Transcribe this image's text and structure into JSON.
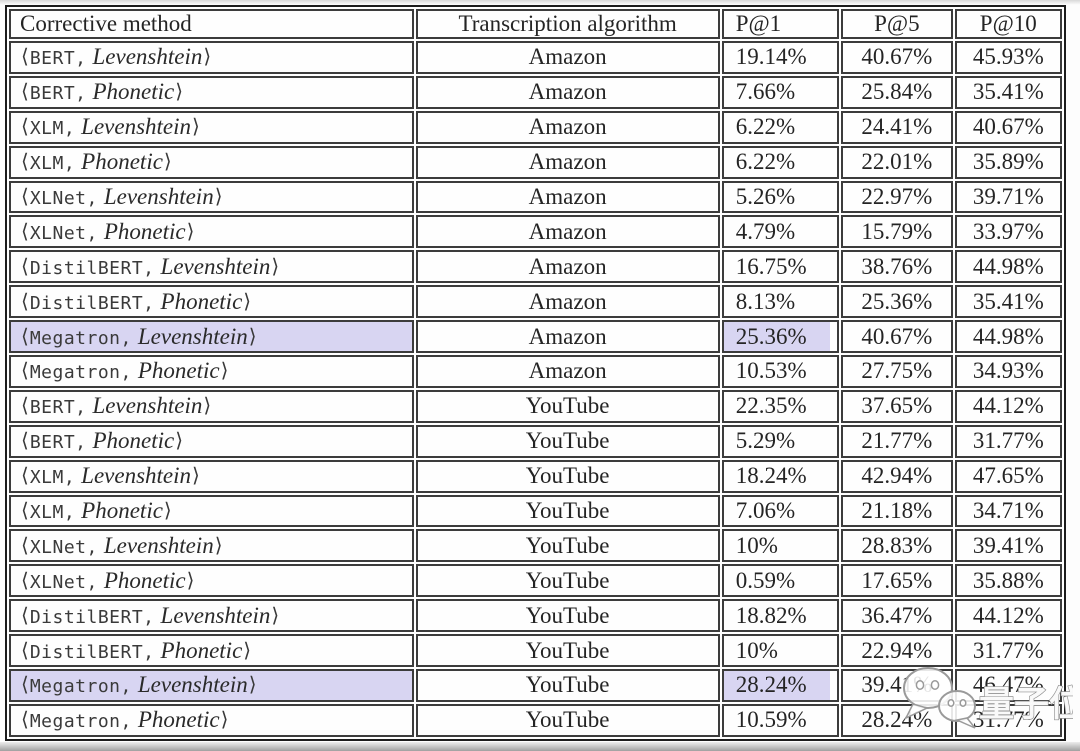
{
  "table": {
    "headers": [
      "Corrective method",
      "Transcription algorithm",
      "P@1",
      "P@5",
      "P@10"
    ],
    "bracket_open": "⟨",
    "bracket_close": "⟩",
    "highlight_color": "#d8d5f2",
    "rows": [
      {
        "model": "BERT",
        "metric": "Levenshtein",
        "algorithm": "Amazon",
        "p1": "19.14%",
        "p5": "40.67%",
        "p10": "45.93%",
        "highlight": false
      },
      {
        "model": "BERT",
        "metric": "Phonetic",
        "algorithm": "Amazon",
        "p1": "7.66%",
        "p5": "25.84%",
        "p10": "35.41%",
        "highlight": false
      },
      {
        "model": "XLM",
        "metric": "Levenshtein",
        "algorithm": "Amazon",
        "p1": "6.22%",
        "p5": "24.41%",
        "p10": "40.67%",
        "highlight": false
      },
      {
        "model": "XLM",
        "metric": "Phonetic",
        "algorithm": "Amazon",
        "p1": "6.22%",
        "p5": "22.01%",
        "p10": "35.89%",
        "highlight": false
      },
      {
        "model": "XLNet",
        "metric": "Levenshtein",
        "algorithm": "Amazon",
        "p1": "5.26%",
        "p5": "22.97%",
        "p10": "39.71%",
        "highlight": false
      },
      {
        "model": "XLNet",
        "metric": "Phonetic",
        "algorithm": "Amazon",
        "p1": "4.79%",
        "p5": "15.79%",
        "p10": "33.97%",
        "highlight": false
      },
      {
        "model": "DistilBERT",
        "metric": "Levenshtein",
        "algorithm": "Amazon",
        "p1": "16.75%",
        "p5": "38.76%",
        "p10": "44.98%",
        "highlight": false
      },
      {
        "model": "DistilBERT",
        "metric": "Phonetic",
        "algorithm": "Amazon",
        "p1": "8.13%",
        "p5": "25.36%",
        "p10": "35.41%",
        "highlight": false
      },
      {
        "model": "Megatron",
        "metric": "Levenshtein",
        "algorithm": "Amazon",
        "p1": "25.36%",
        "p5": "40.67%",
        "p10": "44.98%",
        "highlight": true
      },
      {
        "model": "Megatron",
        "metric": "Phonetic",
        "algorithm": "Amazon",
        "p1": "10.53%",
        "p5": "27.75%",
        "p10": "34.93%",
        "highlight": false
      },
      {
        "model": "BERT",
        "metric": "Levenshtein",
        "algorithm": "YouTube",
        "p1": "22.35%",
        "p5": "37.65%",
        "p10": "44.12%",
        "highlight": false
      },
      {
        "model": "BERT",
        "metric": "Phonetic",
        "algorithm": "YouTube",
        "p1": "5.29%",
        "p5": "21.77%",
        "p10": "31.77%",
        "highlight": false
      },
      {
        "model": "XLM",
        "metric": "Levenshtein",
        "algorithm": "YouTube",
        "p1": "18.24%",
        "p5": "42.94%",
        "p10": "47.65%",
        "highlight": false
      },
      {
        "model": "XLM",
        "metric": "Phonetic",
        "algorithm": "YouTube",
        "p1": "7.06%",
        "p5": "21.18%",
        "p10": "34.71%",
        "highlight": false
      },
      {
        "model": "XLNet",
        "metric": "Levenshtein",
        "algorithm": "YouTube",
        "p1": "10%",
        "p5": "28.83%",
        "p10": "39.41%",
        "highlight": false
      },
      {
        "model": "XLNet",
        "metric": "Phonetic",
        "algorithm": "YouTube",
        "p1": "0.59%",
        "p5": "17.65%",
        "p10": "35.88%",
        "highlight": false
      },
      {
        "model": "DistilBERT",
        "metric": "Levenshtein",
        "algorithm": "YouTube",
        "p1": "18.82%",
        "p5": "36.47%",
        "p10": "44.12%",
        "highlight": false
      },
      {
        "model": "DistilBERT",
        "metric": "Phonetic",
        "algorithm": "YouTube",
        "p1": "10%",
        "p5": "22.94%",
        "p10": "31.77%",
        "highlight": false
      },
      {
        "model": "Megatron",
        "metric": "Levenshtein",
        "algorithm": "YouTube",
        "p1": "28.24%",
        "p5": "39.41%",
        "p10": "46.47%",
        "highlight": true
      },
      {
        "model": "Megatron",
        "metric": "Phonetic",
        "algorithm": "YouTube",
        "p1": "10.59%",
        "p5": "28.24%",
        "p10": "31.77%",
        "highlight": false
      }
    ]
  },
  "watermark": {
    "logo": "wechat-bubbles-icon",
    "text": "量子位"
  },
  "chart_data": {
    "type": "table",
    "columns": [
      "Corrective method",
      "Transcription algorithm",
      "P@1",
      "P@5",
      "P@10"
    ],
    "rows": [
      [
        "⟨BERT, Levenshtein⟩",
        "Amazon",
        "19.14%",
        "40.67%",
        "45.93%"
      ],
      [
        "⟨BERT, Phonetic⟩",
        "Amazon",
        "7.66%",
        "25.84%",
        "35.41%"
      ],
      [
        "⟨XLM, Levenshtein⟩",
        "Amazon",
        "6.22%",
        "24.41%",
        "40.67%"
      ],
      [
        "⟨XLM, Phonetic⟩",
        "Amazon",
        "6.22%",
        "22.01%",
        "35.89%"
      ],
      [
        "⟨XLNet, Levenshtein⟩",
        "Amazon",
        "5.26%",
        "22.97%",
        "39.71%"
      ],
      [
        "⟨XLNet, Phonetic⟩",
        "Amazon",
        "4.79%",
        "15.79%",
        "33.97%"
      ],
      [
        "⟨DistilBERT, Levenshtein⟩",
        "Amazon",
        "16.75%",
        "38.76%",
        "44.98%"
      ],
      [
        "⟨DistilBERT, Phonetic⟩",
        "Amazon",
        "8.13%",
        "25.36%",
        "35.41%"
      ],
      [
        "⟨Megatron, Levenshtein⟩",
        "Amazon",
        "25.36%",
        "40.67%",
        "44.98%"
      ],
      [
        "⟨Megatron, Phonetic⟩",
        "Amazon",
        "10.53%",
        "27.75%",
        "34.93%"
      ],
      [
        "⟨BERT, Levenshtein⟩",
        "YouTube",
        "22.35%",
        "37.65%",
        "44.12%"
      ],
      [
        "⟨BERT, Phonetic⟩",
        "YouTube",
        "5.29%",
        "21.77%",
        "31.77%"
      ],
      [
        "⟨XLM, Levenshtein⟩",
        "YouTube",
        "18.24%",
        "42.94%",
        "47.65%"
      ],
      [
        "⟨XLM, Phonetic⟩",
        "YouTube",
        "7.06%",
        "21.18%",
        "34.71%"
      ],
      [
        "⟨XLNet, Levenshtein⟩",
        "YouTube",
        "10%",
        "28.83%",
        "39.41%"
      ],
      [
        "⟨XLNet, Phonetic⟩",
        "YouTube",
        "0.59%",
        "17.65%",
        "35.88%"
      ],
      [
        "⟨DistilBERT, Levenshtein⟩",
        "YouTube",
        "18.82%",
        "36.47%",
        "44.12%"
      ],
      [
        "⟨DistilBERT, Phonetic⟩",
        "YouTube",
        "10%",
        "22.94%",
        "31.77%"
      ],
      [
        "⟨Megatron, Levenshtein⟩",
        "YouTube",
        "28.24%",
        "39.41%",
        "46.47%"
      ],
      [
        "⟨Megatron, Phonetic⟩",
        "YouTube",
        "10.59%",
        "28.24%",
        "31.77%"
      ]
    ],
    "highlighted_cells": [
      {
        "row_index": 8,
        "columns": [
          "Corrective method",
          "P@1"
        ]
      },
      {
        "row_index": 18,
        "columns": [
          "Corrective method",
          "P@1"
        ]
      }
    ]
  }
}
